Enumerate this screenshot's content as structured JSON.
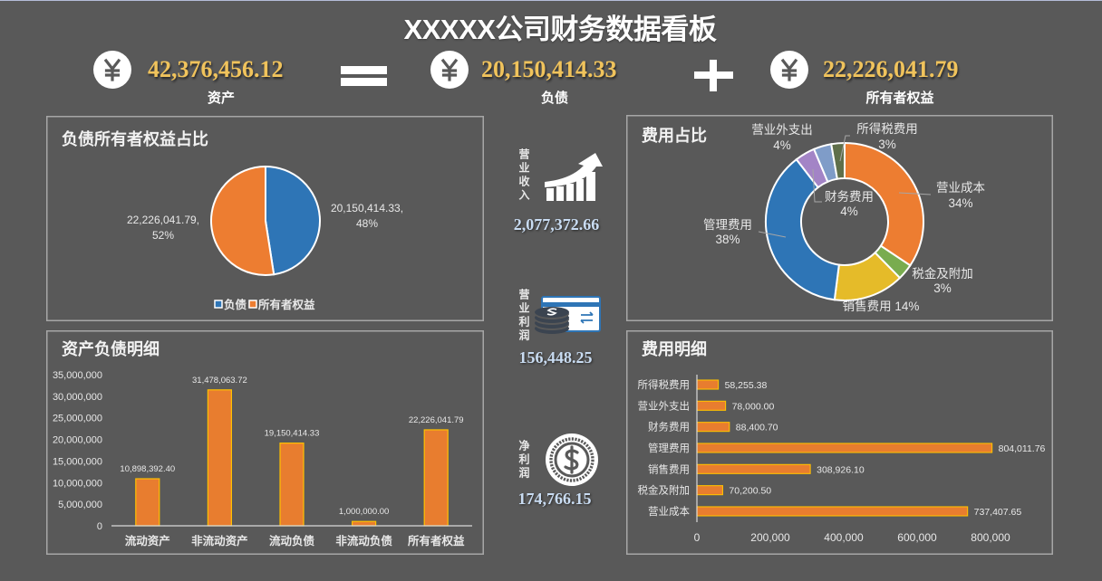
{
  "header": {
    "title": "XXXXX公司财务数据看板"
  },
  "equation": {
    "assets": {
      "icon": "yen-icon",
      "value": "42,376,456.12",
      "label": "资产"
    },
    "operator_1": "equals-icon",
    "liabilities": {
      "icon": "yen-icon",
      "value": "20,150,414.33",
      "label": "负债"
    },
    "operator_2": "plus-icon",
    "equity": {
      "icon": "yen-icon",
      "value": "22,226,041.79",
      "label": "所有者权益"
    }
  },
  "kpis": {
    "revenue": {
      "label": "营业收入",
      "value": "2,077,372.66",
      "icon": "trend-up-chart-icon"
    },
    "operating_profit": {
      "label": "营业利润",
      "value": "156,448.25",
      "icon": "card-coins-icon"
    },
    "net_profit": {
      "label": "净利润",
      "value": "174,766.15",
      "icon": "dollar-coin-icon"
    }
  },
  "panels": {
    "liab_equity_share": {
      "title": "负债所有者权益占比"
    },
    "balance_detail": {
      "title": "资产负债明细"
    },
    "expense_share": {
      "title": "费用占比"
    },
    "expense_detail": {
      "title": "费用明细"
    }
  },
  "colors": {
    "background": "#595959",
    "headline_number": "#f0c35c",
    "kpi_number": "#c9dcf2",
    "bar_fill": "#e87d2f",
    "bar_border": "#ffc000",
    "panel_border": "#a6a6a6"
  },
  "chart_data": [
    {
      "type": "pie",
      "title": "负债所有者权益占比",
      "categories": [
        "负债",
        "所有者权益"
      ],
      "values": [
        20150414.33,
        22226041.79
      ],
      "value_labels": [
        "20,150,414.33,",
        "22,226,041.79,"
      ],
      "percents": [
        "48%",
        "52%"
      ],
      "colors": [
        "#2e75b6",
        "#ed7d31"
      ],
      "legend": [
        "负债",
        "所有者权益"
      ],
      "legend_position": "bottom"
    },
    {
      "type": "bar",
      "title": "资产负债明细",
      "categories": [
        "流动资产",
        "非流动资产",
        "流动负债",
        "非流动负债",
        "所有者权益"
      ],
      "values": [
        10898392.4,
        31478063.72,
        19150414.33,
        1000000.0,
        22226041.79
      ],
      "value_labels": [
        "10,898,392.40",
        "31,478,063.72",
        "19,150,414.33",
        "1,000,000.00",
        "22,226,041.79"
      ],
      "yticks": [
        "0",
        "5,000,000",
        "10,000,000",
        "15,000,000",
        "20,000,000",
        "25,000,000",
        "30,000,000",
        "35,000,000"
      ],
      "ylim": [
        0,
        35000000
      ],
      "xlabel": "",
      "ylabel": "",
      "grid": false,
      "color": "#e87d2f",
      "border_color": "#ffc000"
    },
    {
      "type": "pie",
      "subtype": "donut",
      "title": "费用占比",
      "categories": [
        "营业成本",
        "税金及附加",
        "销售费用",
        "管理费用",
        "财务费用",
        "营业外支出",
        "所得税费用"
      ],
      "values": [
        737407.65,
        70200.5,
        308926.1,
        804011.76,
        88400.7,
        78000.0,
        58255.38
      ],
      "percents": [
        "34%",
        "3%",
        "14%",
        "38%",
        "4%",
        "4%",
        "3%"
      ],
      "colors": [
        "#ed7d31",
        "#79ac4f",
        "#e5bb29",
        "#2e75b6",
        "#a384c6",
        "#7f9cc8",
        "#5f6f4a"
      ]
    },
    {
      "type": "bar",
      "orientation": "horizontal",
      "title": "费用明细",
      "categories": [
        "所得税费用",
        "营业外支出",
        "财务费用",
        "管理费用",
        "销售费用",
        "税金及附加",
        "营业成本"
      ],
      "values": [
        58255.38,
        78000.0,
        88400.7,
        804011.76,
        308926.1,
        70200.5,
        737407.65
      ],
      "value_labels": [
        "58,255.38",
        "78,000.00",
        "88,400.70",
        "804,011.76",
        "308,926.10",
        "70,200.50",
        "737,407.65"
      ],
      "xticks": [
        "0",
        "200,000",
        "400,000",
        "600,000",
        "800,000"
      ],
      "xlim": [
        0,
        800000
      ],
      "grid": false,
      "color": "#e87d2f",
      "border_color": "#ffc000"
    }
  ]
}
